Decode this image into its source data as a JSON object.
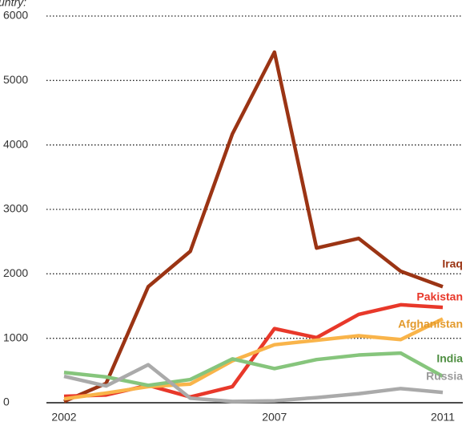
{
  "chart_data": {
    "type": "line",
    "subtitle": "untry:",
    "x": [
      2002,
      2003,
      2004,
      2005,
      2006,
      2007,
      2008,
      2009,
      2010,
      2011
    ],
    "xlim": [
      2002,
      2011
    ],
    "xticks": [
      2002,
      2007,
      2011
    ],
    "ylim": [
      0,
      6000
    ],
    "yticks": [
      0,
      1000,
      2000,
      3000,
      4000,
      5000,
      6000
    ],
    "grid": true,
    "series": [
      {
        "name": "Iraq",
        "color": "#9b3414",
        "values": [
          20,
          300,
          1800,
          2350,
          4170,
          5440,
          2400,
          2550,
          2040,
          1800
        ]
      },
      {
        "name": "Pakistan",
        "color": "#e8382a",
        "values": [
          100,
          120,
          270,
          90,
          250,
          1150,
          1010,
          1370,
          1520,
          1480
        ]
      },
      {
        "name": "Afghanistan",
        "color": "#f9b44a",
        "values": [
          60,
          150,
          250,
          290,
          650,
          900,
          970,
          1040,
          980,
          1300
        ]
      },
      {
        "name": "India",
        "color": "#86c57c",
        "values": [
          470,
          400,
          270,
          360,
          680,
          530,
          670,
          740,
          770,
          410
        ]
      },
      {
        "name": "Russia",
        "color": "#aaaaaa",
        "values": [
          410,
          260,
          590,
          70,
          20,
          30,
          80,
          140,
          220,
          160
        ]
      }
    ]
  }
}
